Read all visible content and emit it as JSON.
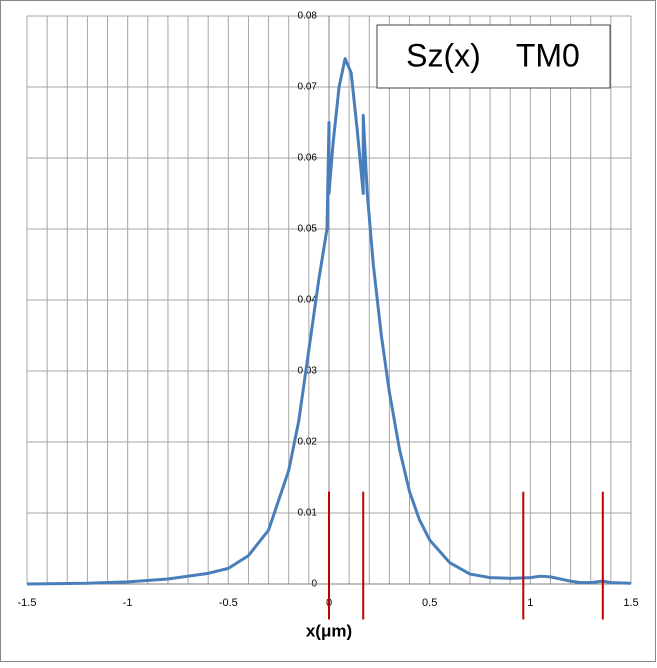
{
  "chart_data": {
    "type": "line",
    "title": "Sz(x)    TM0",
    "x_label": "x(μm)",
    "xlim": [
      -1.5,
      1.5
    ],
    "ylim": [
      0,
      0.08
    ],
    "xticks": [
      -1.5,
      -1,
      -0.5,
      0,
      0.5,
      1,
      1.5
    ],
    "yticks": [
      0,
      0.01,
      0.02,
      0.03,
      0.04,
      0.05,
      0.06,
      0.07,
      0.08
    ],
    "x_minor_grid": [
      -1.4,
      -1.3,
      -1.2,
      -1.1,
      -0.9,
      -0.8,
      -0.7,
      -0.6,
      -0.4,
      -0.3,
      -0.2,
      -0.1,
      0.1,
      0.2,
      0.3,
      0.4,
      0.6,
      0.7,
      0.8,
      0.9,
      1.1,
      1.2,
      1.3,
      1.4
    ],
    "grid": true,
    "series": [
      {
        "color": "#4a7ebb",
        "x": [
          -1.5,
          -1.2,
          -1.0,
          -0.8,
          -0.6,
          -0.5,
          -0.4,
          -0.3,
          -0.2,
          -0.15,
          -0.1,
          -0.05,
          -0.01,
          0,
          0,
          0.02,
          0.05,
          0.08,
          0.11,
          0.14,
          0.17,
          0.17,
          0.19,
          0.22,
          0.26,
          0.3,
          0.35,
          0.4,
          0.45,
          0.5,
          0.6,
          0.7,
          0.8,
          0.9,
          1.0,
          1.05,
          1.1,
          1.2,
          1.25,
          1.3,
          1.36,
          1.4,
          1.5
        ],
        "values": [
          0,
          0.0001,
          0.0003,
          0.0007,
          0.0015,
          0.0022,
          0.004,
          0.0076,
          0.016,
          0.023,
          0.033,
          0.043,
          0.05,
          0.065,
          0.055,
          0.062,
          0.07,
          0.074,
          0.072,
          0.064,
          0.055,
          0.066,
          0.055,
          0.045,
          0.035,
          0.027,
          0.019,
          0.013,
          0.009,
          0.0062,
          0.003,
          0.0014,
          0.0009,
          0.0008,
          0.0009,
          0.0011,
          0.001,
          0.0004,
          0.0002,
          0.0002,
          0.0004,
          0.0002,
          0.0001
        ]
      }
    ],
    "vlines": {
      "color": "#c00000",
      "x": [
        0,
        0.17,
        0.965,
        1.36
      ],
      "range": [
        -0.005,
        0.013
      ]
    }
  }
}
